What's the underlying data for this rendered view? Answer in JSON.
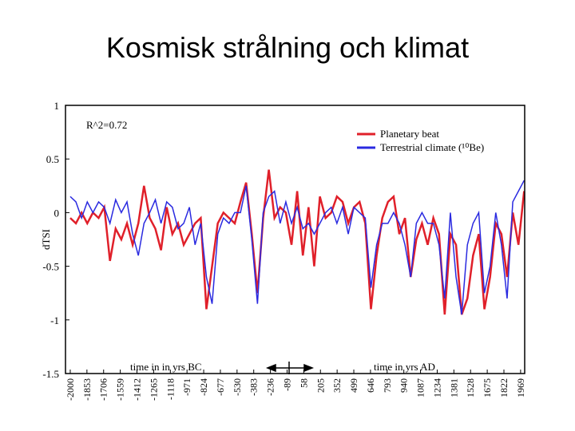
{
  "chart_data": {
    "type": "line",
    "title": "Kosmisk strålning och klimat",
    "y_label": "dTSI",
    "annotations": [
      "R^2=0.72",
      "time in in yrs BC",
      "time in yrs AD"
    ],
    "x": [
      -2000,
      -1950,
      -1900,
      -1850,
      -1800,
      -1750,
      -1700,
      -1650,
      -1600,
      -1550,
      -1500,
      -1450,
      -1400,
      -1350,
      -1300,
      -1250,
      -1200,
      -1150,
      -1100,
      -1050,
      -1000,
      -950,
      -900,
      -850,
      -800,
      -750,
      -700,
      -650,
      -600,
      -550,
      -500,
      -450,
      -400,
      -350,
      -300,
      -250,
      -200,
      -150,
      -100,
      -50,
      0,
      50,
      100,
      150,
      200,
      250,
      300,
      350,
      400,
      450,
      500,
      550,
      600,
      650,
      700,
      750,
      800,
      850,
      900,
      950,
      1000,
      1050,
      1100,
      1150,
      1200,
      1250,
      1300,
      1350,
      1400,
      1450,
      1500,
      1550,
      1600,
      1650,
      1700,
      1750,
      1800,
      1850,
      1900,
      1950,
      2000
    ],
    "series": [
      {
        "name": "Planetary beat",
        "color": "#e0202a",
        "values": [
          -0.05,
          -0.1,
          0.0,
          -0.1,
          0.0,
          -0.05,
          0.05,
          -0.45,
          -0.15,
          -0.25,
          -0.1,
          -0.3,
          -0.1,
          0.25,
          -0.05,
          -0.15,
          -0.35,
          0.05,
          -0.2,
          -0.1,
          -0.3,
          -0.2,
          -0.1,
          -0.05,
          -0.9,
          -0.5,
          -0.1,
          0.0,
          -0.05,
          -0.1,
          0.1,
          0.28,
          -0.2,
          -0.75,
          -0.05,
          0.4,
          -0.05,
          0.05,
          0.0,
          -0.3,
          0.2,
          -0.4,
          0.05,
          -0.5,
          0.15,
          -0.05,
          0.0,
          0.15,
          0.1,
          -0.1,
          0.05,
          0.1,
          -0.1,
          -0.9,
          -0.4,
          -0.05,
          0.1,
          0.15,
          -0.2,
          -0.05,
          -0.6,
          -0.25,
          -0.1,
          -0.3,
          -0.05,
          -0.2,
          -0.95,
          -0.2,
          -0.3,
          -0.95,
          -0.8,
          -0.4,
          -0.2,
          -0.9,
          -0.6,
          -0.1,
          -0.2,
          -0.6,
          0.0,
          -0.3,
          0.2
        ]
      },
      {
        "name": "Terrestrial climate (¹⁰Be)",
        "color": "#2a2ae0",
        "values": [
          0.15,
          0.1,
          -0.05,
          0.1,
          0.0,
          0.1,
          0.05,
          -0.1,
          0.12,
          0.0,
          0.1,
          -0.2,
          -0.4,
          -0.1,
          0.0,
          0.12,
          -0.1,
          0.1,
          0.05,
          -0.15,
          -0.1,
          0.05,
          -0.3,
          -0.1,
          -0.6,
          -0.85,
          -0.2,
          -0.05,
          -0.1,
          0.0,
          0.0,
          0.25,
          -0.25,
          -0.85,
          0.0,
          0.15,
          0.2,
          -0.1,
          0.1,
          -0.1,
          0.05,
          -0.15,
          -0.1,
          -0.2,
          -0.1,
          0.0,
          0.05,
          -0.1,
          0.05,
          -0.2,
          0.05,
          0.0,
          -0.05,
          -0.7,
          -0.3,
          -0.1,
          -0.1,
          0.0,
          -0.1,
          -0.3,
          -0.6,
          -0.1,
          0.0,
          -0.1,
          -0.1,
          -0.3,
          -0.8,
          0.0,
          -0.6,
          -0.95,
          -0.3,
          -0.1,
          0.0,
          -0.75,
          -0.5,
          0.0,
          -0.3,
          -0.8,
          0.1,
          0.2,
          0.3
        ]
      }
    ],
    "xlim": [
      -2042,
      2005
    ],
    "xticks": [
      -2000,
      -1853,
      -1706,
      -1559,
      -1412,
      -1265,
      -1118,
      -971,
      -824,
      -677,
      -530,
      -383,
      -236,
      -89,
      58,
      205,
      352,
      499,
      646,
      793,
      940,
      1087,
      1234,
      1381,
      1528,
      1675,
      1822,
      1969
    ],
    "ylim": [
      -1.5,
      1
    ],
    "yticks": [
      1,
      0.5,
      0,
      -0.5,
      -1,
      -1.5
    ]
  }
}
